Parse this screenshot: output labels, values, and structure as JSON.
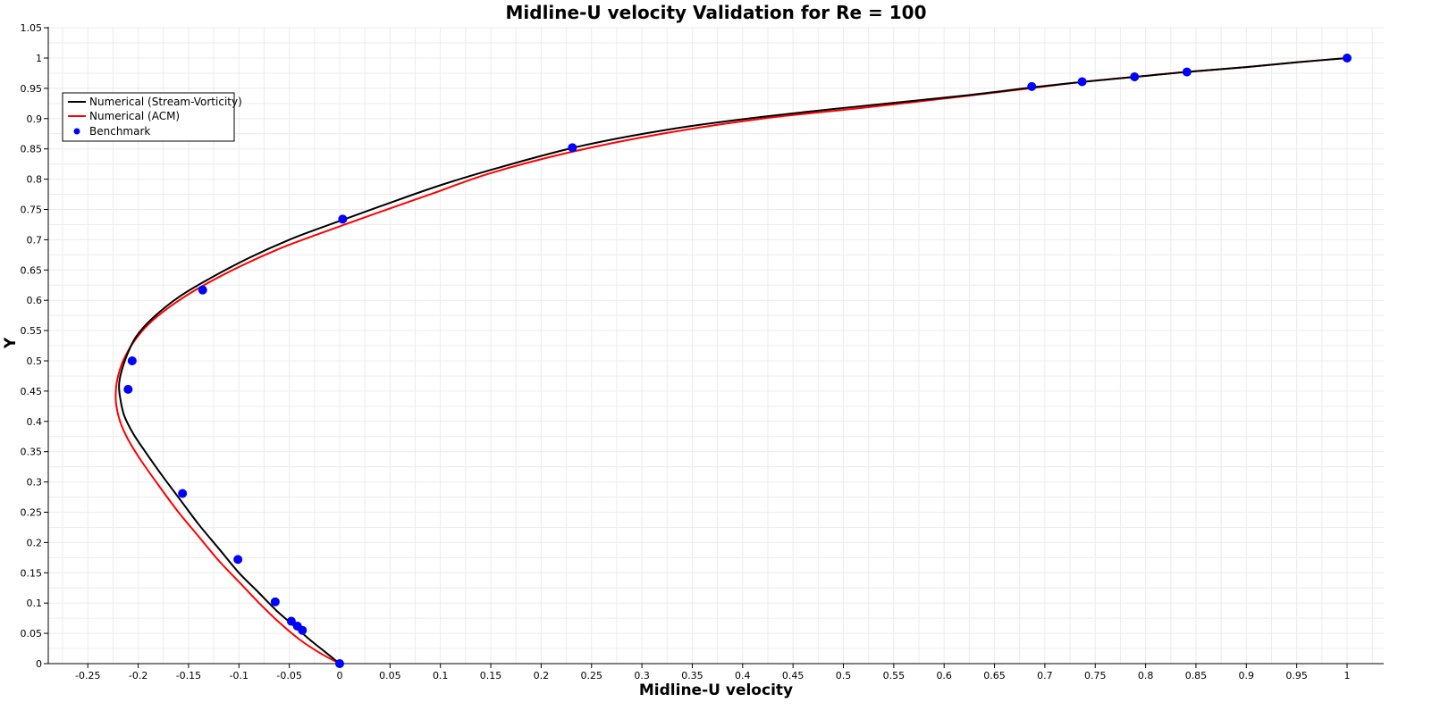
{
  "chart_data": {
    "type": "line",
    "title": "Midline-U velocity Validation for Re = 100",
    "xlabel": "Midline-U velocity",
    "ylabel": "Y",
    "xlim": [
      -0.29,
      1.04
    ],
    "ylim": [
      0,
      1.06
    ],
    "xticks": [
      -0.25,
      -0.2,
      -0.15,
      -0.1,
      -0.05,
      0,
      0.05,
      0.1,
      0.15,
      0.2,
      0.25,
      0.3,
      0.35,
      0.4,
      0.45,
      0.5,
      0.55,
      0.6,
      0.65,
      0.7,
      0.75,
      0.8,
      0.85,
      0.9,
      0.95,
      1
    ],
    "xtick_labels": [
      "-0.25",
      "-0.2",
      "-0.15",
      "-0.1",
      "-0.05",
      "0",
      "0.05",
      "0.1",
      "0.15",
      "0.2",
      "0.25",
      "0.3",
      "0.35",
      "0.4",
      "0.45",
      "0.5",
      "0.55",
      "0.6",
      "0.65",
      "0.7",
      "0.75",
      "0.8",
      "0.85",
      "0.9",
      "0.95",
      "1"
    ],
    "yticks": [
      0,
      0.05,
      0.1,
      0.15,
      0.2,
      0.25,
      0.3,
      0.35,
      0.4,
      0.45,
      0.5,
      0.55,
      0.6,
      0.65,
      0.7,
      0.75,
      0.8,
      0.85,
      0.9,
      0.95,
      1,
      1.05
    ],
    "ytick_labels": [
      "0",
      "0.05",
      "0.1",
      "0.15",
      "0.2",
      "0.25",
      "0.3",
      "0.35",
      "0.4",
      "0.45",
      "0.5",
      "0.55",
      "0.6",
      "0.65",
      "0.7",
      "0.75",
      "0.8",
      "0.85",
      "0.9",
      "0.95",
      "1",
      "1.05"
    ],
    "grid": true,
    "legend_position": "top-left",
    "series": [
      {
        "name": "Numerical (Stream-Vorticity)",
        "kind": "line",
        "color": "#000000",
        "points": [
          [
            0,
            0
          ],
          [
            -0.015,
            0.02
          ],
          [
            -0.03,
            0.04
          ],
          [
            -0.045,
            0.062
          ],
          [
            -0.063,
            0.088
          ],
          [
            -0.082,
            0.12
          ],
          [
            -0.1,
            0.15
          ],
          [
            -0.12,
            0.19
          ],
          [
            -0.14,
            0.23
          ],
          [
            -0.158,
            0.27
          ],
          [
            -0.176,
            0.31
          ],
          [
            -0.193,
            0.35
          ],
          [
            -0.205,
            0.38
          ],
          [
            -0.214,
            0.41
          ],
          [
            -0.218,
            0.44
          ],
          [
            -0.219,
            0.46
          ],
          [
            -0.217,
            0.48
          ],
          [
            -0.211,
            0.51
          ],
          [
            -0.202,
            0.54
          ],
          [
            -0.186,
            0.57
          ],
          [
            -0.16,
            0.605
          ],
          [
            -0.13,
            0.635
          ],
          [
            -0.09,
            0.67
          ],
          [
            -0.05,
            0.7
          ],
          [
            -0.01,
            0.725
          ],
          [
            0.04,
            0.755
          ],
          [
            0.1,
            0.79
          ],
          [
            0.16,
            0.82
          ],
          [
            0.24,
            0.855
          ],
          [
            0.33,
            0.883
          ],
          [
            0.42,
            0.903
          ],
          [
            0.52,
            0.921
          ],
          [
            0.62,
            0.938
          ],
          [
            0.69,
            0.952
          ],
          [
            0.74,
            0.961
          ],
          [
            0.79,
            0.969
          ],
          [
            0.84,
            0.977
          ],
          [
            0.9,
            0.985
          ],
          [
            0.95,
            0.993
          ],
          [
            1.0,
            1.0
          ]
        ]
      },
      {
        "name": "Numerical (ACM)",
        "kind": "line",
        "color": "#ff0000",
        "points": [
          [
            0,
            0
          ],
          [
            -0.02,
            0.018
          ],
          [
            -0.04,
            0.04
          ],
          [
            -0.06,
            0.068
          ],
          [
            -0.08,
            0.1
          ],
          [
            -0.1,
            0.135
          ],
          [
            -0.12,
            0.17
          ],
          [
            -0.14,
            0.21
          ],
          [
            -0.16,
            0.25
          ],
          [
            -0.18,
            0.295
          ],
          [
            -0.197,
            0.335
          ],
          [
            -0.21,
            0.37
          ],
          [
            -0.218,
            0.4
          ],
          [
            -0.222,
            0.43
          ],
          [
            -0.222,
            0.455
          ],
          [
            -0.22,
            0.475
          ],
          [
            -0.215,
            0.5
          ],
          [
            -0.205,
            0.53
          ],
          [
            -0.19,
            0.56
          ],
          [
            -0.168,
            0.59
          ],
          [
            -0.14,
            0.62
          ],
          [
            -0.1,
            0.655
          ],
          [
            -0.06,
            0.685
          ],
          [
            -0.02,
            0.71
          ],
          [
            0.03,
            0.74
          ],
          [
            0.09,
            0.775
          ],
          [
            0.15,
            0.81
          ],
          [
            0.23,
            0.845
          ],
          [
            0.32,
            0.875
          ],
          [
            0.42,
            0.9
          ],
          [
            0.52,
            0.918
          ],
          [
            0.62,
            0.937
          ],
          [
            0.69,
            0.951
          ],
          [
            0.74,
            0.961
          ],
          [
            0.79,
            0.969
          ],
          [
            0.84,
            0.977
          ],
          [
            0.9,
            0.985
          ],
          [
            0.95,
            0.993
          ],
          [
            1.0,
            1.0
          ]
        ]
      },
      {
        "name": "Benchmark",
        "kind": "scatter",
        "color": "#0000ff",
        "points": [
          [
            0,
            0
          ],
          [
            -0.037,
            0.055
          ],
          [
            -0.042,
            0.062
          ],
          [
            -0.048,
            0.07
          ],
          [
            -0.064,
            0.102
          ],
          [
            -0.101,
            0.172
          ],
          [
            -0.156,
            0.281
          ],
          [
            -0.21,
            0.453
          ],
          [
            -0.206,
            0.5
          ],
          [
            -0.136,
            0.617
          ],
          [
            0.003,
            0.734
          ],
          [
            0.231,
            0.852
          ],
          [
            0.687,
            0.953
          ],
          [
            0.737,
            0.961
          ],
          [
            0.789,
            0.969
          ],
          [
            0.841,
            0.977
          ],
          [
            1.0,
            1.0
          ]
        ]
      }
    ]
  }
}
